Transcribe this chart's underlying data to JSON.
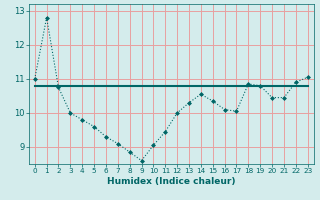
{
  "xlabel": "Humidex (Indice chaleur)",
  "x": [
    0,
    1,
    2,
    3,
    4,
    5,
    6,
    7,
    8,
    9,
    10,
    11,
    12,
    13,
    14,
    15,
    16,
    17,
    18,
    19,
    20,
    21,
    22,
    23
  ],
  "line1": [
    11.0,
    12.8,
    10.75,
    10.0,
    9.8,
    9.6,
    9.3,
    9.1,
    8.85,
    8.6,
    9.05,
    9.45,
    10.0,
    10.3,
    10.55,
    10.35,
    10.1,
    10.05,
    10.85,
    10.8,
    10.45,
    10.45,
    10.9,
    11.05
  ],
  "line2": [
    10.78,
    10.78,
    10.78,
    10.78,
    10.78,
    10.78,
    10.78,
    10.78,
    10.78,
    10.78,
    10.78,
    10.78,
    10.78,
    10.78,
    10.78,
    10.78,
    10.78,
    10.78,
    10.78,
    10.78,
    10.78,
    10.78,
    10.78,
    10.78
  ],
  "line_color": "#006666",
  "bg_color": "#d4ecec",
  "grid_color": "#e8a0a0",
  "ylim": [
    8.5,
    13.2
  ],
  "xlim": [
    -0.5,
    23.5
  ],
  "yticks": [
    9,
    10,
    11,
    12,
    13
  ],
  "xticks": [
    0,
    1,
    2,
    3,
    4,
    5,
    6,
    7,
    8,
    9,
    10,
    11,
    12,
    13,
    14,
    15,
    16,
    17,
    18,
    19,
    20,
    21,
    22,
    23
  ]
}
